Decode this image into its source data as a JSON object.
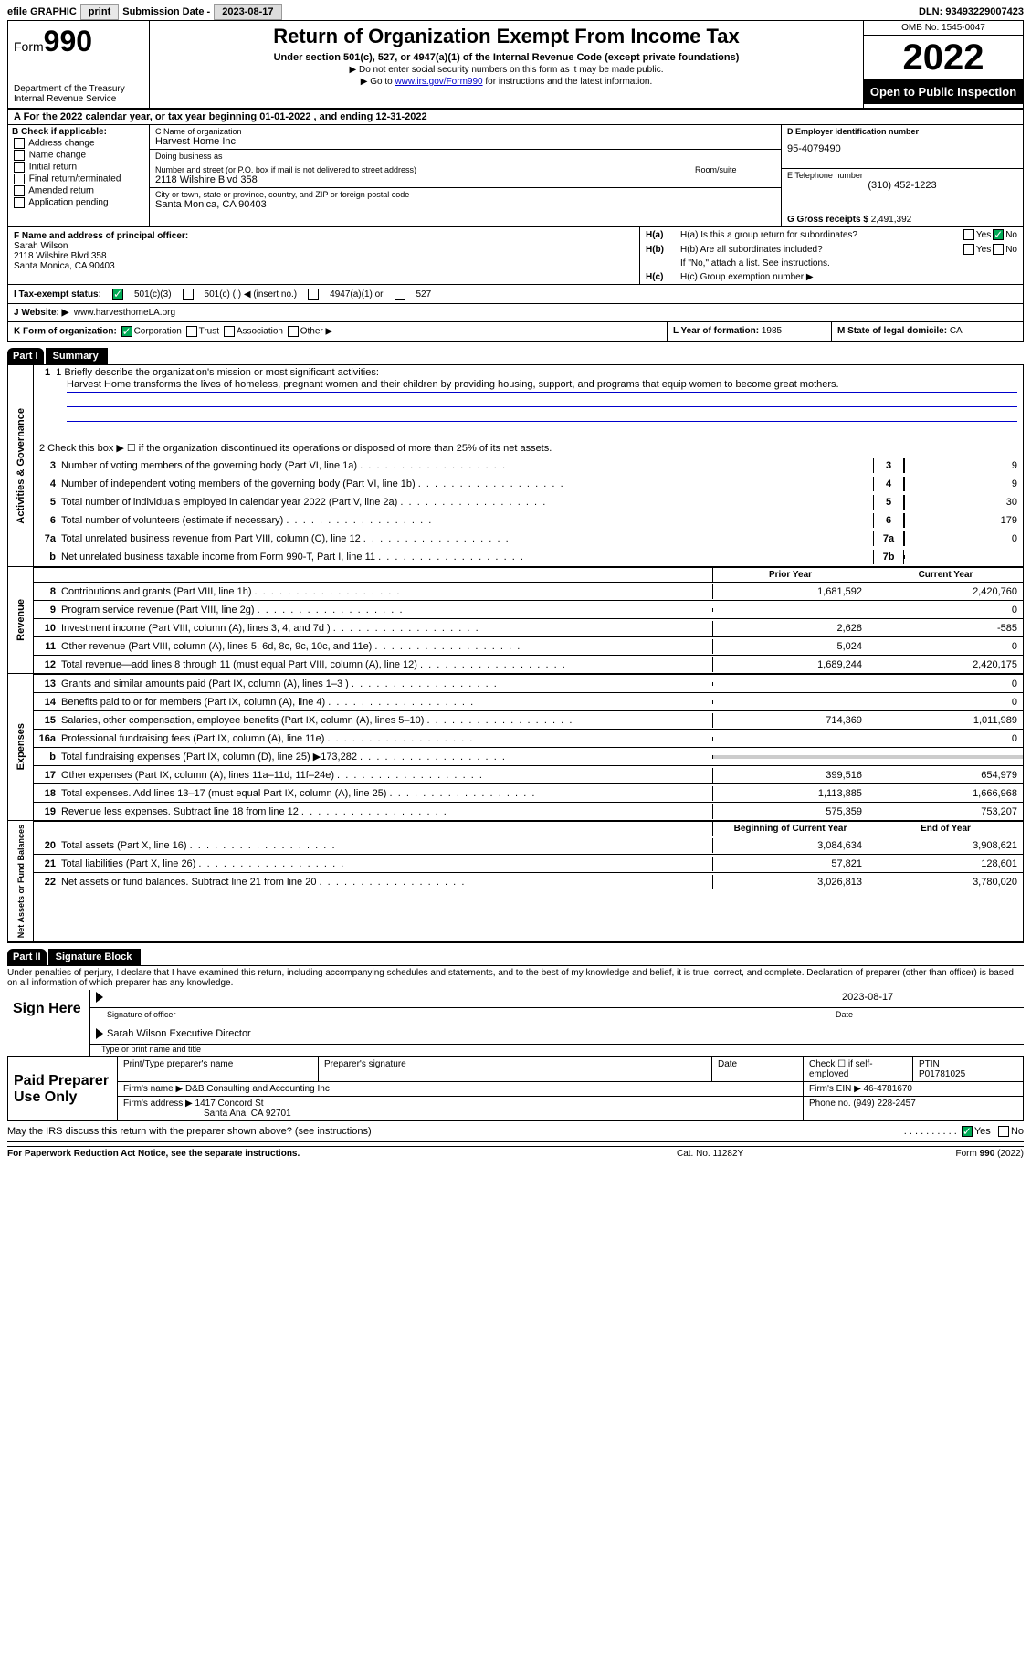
{
  "topbar": {
    "efile": "efile GRAPHIC",
    "print": "print",
    "sub_lbl": "Submission Date -",
    "sub_date": "2023-08-17",
    "dln_lbl": "DLN:",
    "dln": "93493229007423"
  },
  "header": {
    "form": "Form",
    "form_no": "990",
    "dept": "Department of the Treasury\nInternal Revenue Service",
    "title": "Return of Organization Exempt From Income Tax",
    "subtitle": "Under section 501(c), 527, or 4947(a)(1) of the Internal Revenue Code (except private foundations)",
    "note1": "▶ Do not enter social security numbers on this form as it may be made public.",
    "note2_pre": "▶ Go to ",
    "note2_link": "www.irs.gov/Form990",
    "note2_post": " for instructions and the latest information.",
    "omb": "OMB No. 1545-0047",
    "year": "2022",
    "pubins": "Open to Public Inspection"
  },
  "cal": {
    "text_a": "A For the 2022 calendar year, or tax year beginning ",
    "begin": "01-01-2022",
    "mid": " , and ending ",
    "end": "12-31-2022"
  },
  "colB": {
    "hdr": "B Check if applicable:",
    "opts": [
      "Address change",
      "Name change",
      "Initial return",
      "Final return/terminated",
      "Amended return",
      "Application pending"
    ]
  },
  "colC": {
    "name_lbl": "C Name of organization",
    "name": "Harvest Home Inc",
    "dba_lbl": "Doing business as",
    "dba": "",
    "street_lbl": "Number and street (or P.O. box if mail is not delivered to street address)",
    "street": "2118 Wilshire Blvd 358",
    "room_lbl": "Room/suite",
    "city_lbl": "City or town, state or province, country, and ZIP or foreign postal code",
    "city": "Santa Monica, CA  90403"
  },
  "colD": {
    "ein_lbl": "D Employer identification number",
    "ein": "95-4079490",
    "tel_lbl": "E Telephone number",
    "tel": "(310) 452-1223",
    "gross_lbl": "G Gross receipts $",
    "gross": "2,491,392"
  },
  "F": {
    "lbl": "F Name and address of principal officer:",
    "name": "Sarah Wilson",
    "addr1": "2118 Wilshire Blvd 358",
    "addr2": "Santa Monica, CA  90403"
  },
  "H": {
    "a_lbl": "H(a)  Is this a group return for subordinates?",
    "b_lbl": "H(b)  Are all subordinates included?",
    "b_note": "If \"No,\" attach a list. See instructions.",
    "c_lbl": "H(c)  Group exemption number ▶",
    "yes": "Yes",
    "no": "No"
  },
  "I": {
    "lbl": "I  Tax-exempt status:",
    "o1": "501(c)(3)",
    "o2": "501(c) (  ) ◀ (insert no.)",
    "o3": "4947(a)(1) or",
    "o4": "527"
  },
  "J": {
    "lbl": "J  Website: ▶",
    "val": "www.harvesthomeLA.org"
  },
  "K": {
    "lbl": "K Form of organization:",
    "o1": "Corporation",
    "o2": "Trust",
    "o3": "Association",
    "o4": "Other ▶",
    "L_lbl": "L Year of formation:",
    "L_val": "1985",
    "M_lbl": "M State of legal domicile:",
    "M_val": "CA"
  },
  "part1": {
    "hdr": "Part I",
    "title": "Summary"
  },
  "mission": {
    "lbl": "1  Briefly describe the organization's mission or most significant activities:",
    "text": "Harvest Home transforms the lives of homeless, pregnant women and their children by providing housing, support, and programs that equip women to become great mothers."
  },
  "line2": "2   Check this box ▶ ☐ if the organization discontinued its operations or disposed of more than 25% of its net assets.",
  "gov_lines": [
    {
      "n": "3",
      "t": "Number of voting members of the governing body (Part VI, line 1a)",
      "box": "3",
      "v": "9"
    },
    {
      "n": "4",
      "t": "Number of independent voting members of the governing body (Part VI, line 1b)",
      "box": "4",
      "v": "9"
    },
    {
      "n": "5",
      "t": "Total number of individuals employed in calendar year 2022 (Part V, line 2a)",
      "box": "5",
      "v": "30"
    },
    {
      "n": "6",
      "t": "Total number of volunteers (estimate if necessary)",
      "box": "6",
      "v": "179"
    },
    {
      "n": "7a",
      "t": "Total unrelated business revenue from Part VIII, column (C), line 12",
      "box": "7a",
      "v": "0"
    },
    {
      "n": " b",
      "t": "Net unrelated business taxable income from Form 990-T, Part I, line 11",
      "box": "7b",
      "v": ""
    }
  ],
  "rev_hdr": {
    "c1": "Prior Year",
    "c2": "Current Year"
  },
  "rev_lines": [
    {
      "n": "8",
      "t": "Contributions and grants (Part VIII, line 1h)",
      "p": "1,681,592",
      "c": "2,420,760"
    },
    {
      "n": "9",
      "t": "Program service revenue (Part VIII, line 2g)",
      "p": "",
      "c": "0"
    },
    {
      "n": "10",
      "t": "Investment income (Part VIII, column (A), lines 3, 4, and 7d )",
      "p": "2,628",
      "c": "-585"
    },
    {
      "n": "11",
      "t": "Other revenue (Part VIII, column (A), lines 5, 6d, 8c, 9c, 10c, and 11e)",
      "p": "5,024",
      "c": "0"
    },
    {
      "n": "12",
      "t": "Total revenue—add lines 8 through 11 (must equal Part VIII, column (A), line 12)",
      "p": "1,689,244",
      "c": "2,420,175"
    }
  ],
  "exp_lines": [
    {
      "n": "13",
      "t": "Grants and similar amounts paid (Part IX, column (A), lines 1–3 )",
      "p": "",
      "c": "0"
    },
    {
      "n": "14",
      "t": "Benefits paid to or for members (Part IX, column (A), line 4)",
      "p": "",
      "c": "0"
    },
    {
      "n": "15",
      "t": "Salaries, other compensation, employee benefits (Part IX, column (A), lines 5–10)",
      "p": "714,369",
      "c": "1,011,989"
    },
    {
      "n": "16a",
      "t": "Professional fundraising fees (Part IX, column (A), line 11e)",
      "p": "",
      "c": "0"
    },
    {
      "n": "b",
      "t": "Total fundraising expenses (Part IX, column (D), line 25) ▶173,282",
      "p": "shade",
      "c": "shade"
    },
    {
      "n": "17",
      "t": "Other expenses (Part IX, column (A), lines 11a–11d, 11f–24e)",
      "p": "399,516",
      "c": "654,979"
    },
    {
      "n": "18",
      "t": "Total expenses. Add lines 13–17 (must equal Part IX, column (A), line 25)",
      "p": "1,113,885",
      "c": "1,666,968"
    },
    {
      "n": "19",
      "t": "Revenue less expenses. Subtract line 18 from line 12",
      "p": "575,359",
      "c": "753,207"
    }
  ],
  "net_hdr": {
    "c1": "Beginning of Current Year",
    "c2": "End of Year"
  },
  "net_lines": [
    {
      "n": "20",
      "t": "Total assets (Part X, line 16)",
      "p": "3,084,634",
      "c": "3,908,621"
    },
    {
      "n": "21",
      "t": "Total liabilities (Part X, line 26)",
      "p": "57,821",
      "c": "128,601"
    },
    {
      "n": "22",
      "t": "Net assets or fund balances. Subtract line 21 from line 20",
      "p": "3,026,813",
      "c": "3,780,020"
    }
  ],
  "sections": {
    "gov": "Activities & Governance",
    "rev": "Revenue",
    "exp": "Expenses",
    "net": "Net Assets or Fund Balances"
  },
  "part2": {
    "hdr": "Part II",
    "title": "Signature Block"
  },
  "sig": {
    "decl": "Under penalties of perjury, I declare that I have examined this return, including accompanying schedules and statements, and to the best of my knowledge and belief, it is true, correct, and complete. Declaration of preparer (other than officer) is based on all information of which preparer has any knowledge.",
    "sign_here": "Sign Here",
    "sig_off": "Signature of officer",
    "date": "Date",
    "sig_date": "2023-08-17",
    "name_title": "Sarah Wilson  Executive Director",
    "type_name": "Type or print name and title"
  },
  "prep": {
    "lbl": "Paid Preparer Use Only",
    "r1": {
      "c1": "Print/Type preparer's name",
      "c2": "Preparer's signature",
      "c3": "Date",
      "c4_lbl": "Check ☐ if self-employed",
      "c5_lbl": "PTIN",
      "c5": "P01781025"
    },
    "r2": {
      "lbl": "Firm's name   ▶",
      "v": "D&B Consulting and Accounting Inc",
      "ein_lbl": "Firm's EIN ▶",
      "ein": "46-4781670"
    },
    "r3": {
      "lbl": "Firm's address ▶",
      "v1": "1417 Concord St",
      "v2": "Santa Ana, CA  92701",
      "ph_lbl": "Phone no.",
      "ph": "(949) 228-2457"
    }
  },
  "may": {
    "q": "May the IRS discuss this return with the preparer shown above? (see instructions)",
    "yes": "Yes",
    "no": "No"
  },
  "footer": {
    "f1": "For Paperwork Reduction Act Notice, see the separate instructions.",
    "f2": "Cat. No. 11282Y",
    "f3": "Form 990 (2022)"
  }
}
